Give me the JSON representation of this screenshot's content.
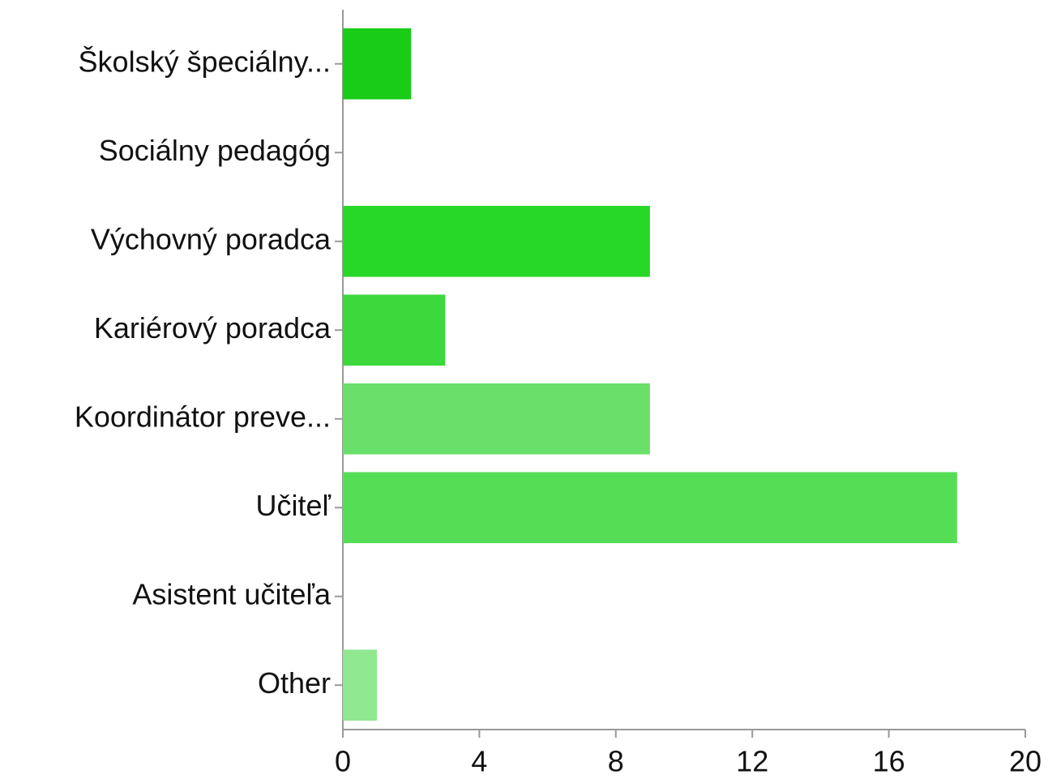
{
  "chart_data": {
    "type": "bar",
    "orientation": "horizontal",
    "categories": [
      "Školský špeciálny...",
      "Sociálny pedagóg",
      "Výchovný poradca",
      "Kariérový poradca",
      "Koordinátor preve...",
      "Učiteľ",
      "Asistent učiteľa",
      "Other"
    ],
    "values": [
      2,
      0,
      9,
      3,
      9,
      18,
      0,
      1
    ],
    "colors": [
      "#18cc18",
      "#22d222",
      "#28d828",
      "#3cd83c",
      "#6ae06a",
      "#55dd55",
      "#77e277",
      "#90e890"
    ],
    "xlim": [
      0,
      20
    ],
    "xticks": [
      0,
      4,
      8,
      12,
      16,
      20
    ]
  }
}
